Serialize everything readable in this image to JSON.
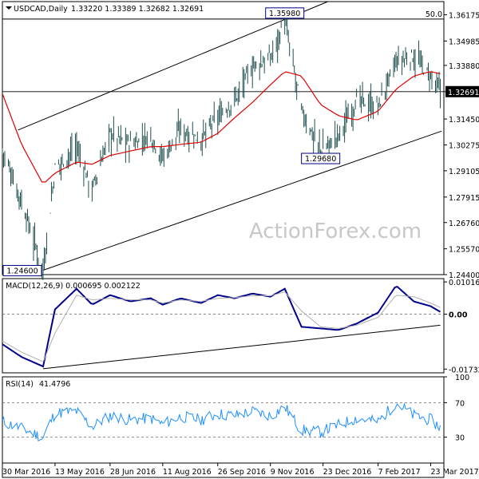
{
  "chart_data": [
    {
      "type": "ohlc",
      "panel": "price",
      "header": {
        "symbol": "USDCAD,Daily",
        "values": "1.33220 1.33389 1.32682 1.32691"
      },
      "y_ticks": [
        "1.36175",
        "1.34985",
        "1.33880",
        "1.32691",
        "1.31450",
        "1.30275",
        "1.29105",
        "1.27915",
        "1.26760",
        "1.25570",
        "1.24400"
      ],
      "ylim": [
        1.244,
        1.3677
      ],
      "last_price": 1.32691,
      "last_price_label": "1.32691",
      "fib_level": {
        "label": "50.0",
        "value": 1.3598
      },
      "horizontal_line": 1.3269,
      "annotations": [
        {
          "text": "1.35980",
          "value": 1.3598,
          "date": "2016-11-21"
        },
        {
          "text": "1.29680",
          "value": 1.2968,
          "date": "2016-12-21"
        },
        {
          "text": "1.24600",
          "value": 1.246,
          "date": "2016-05-03"
        }
      ],
      "trend_lines": [
        {
          "from": {
            "date": "2016-04-12",
            "value": 1.3095
          },
          "to": {
            "date": "2016-12-27",
            "value": 1.3677
          }
        },
        {
          "from": {
            "date": "2016-05-03",
            "value": 1.246
          },
          "to": {
            "date": "2017-04-01",
            "value": 1.309
          }
        }
      ],
      "moving_average_color": "#e00000",
      "bar_color": "#1f4f4f",
      "series_note": "approximate daily closes",
      "x": [
        "2016-03-30",
        "2016-04-15",
        "2016-05-03",
        "2016-05-13",
        "2016-05-31",
        "2016-06-13",
        "2016-06-28",
        "2016-07-15",
        "2016-08-01",
        "2016-08-11",
        "2016-08-26",
        "2016-09-12",
        "2016-09-26",
        "2016-10-10",
        "2016-10-25",
        "2016-11-09",
        "2016-11-21",
        "2016-12-05",
        "2016-12-21",
        "2017-01-05",
        "2017-01-20",
        "2017-02-07",
        "2017-02-22",
        "2017-03-09",
        "2017-03-23",
        "2017-03-31"
      ],
      "values": [
        1.3005,
        1.277,
        1.2462,
        1.292,
        1.302,
        1.282,
        1.308,
        1.303,
        1.307,
        1.297,
        1.31,
        1.305,
        1.315,
        1.323,
        1.338,
        1.342,
        1.359,
        1.318,
        1.3,
        1.307,
        1.323,
        1.32,
        1.34,
        1.343,
        1.333,
        1.3269
      ],
      "ma_values": [
        1.326,
        1.303,
        1.285,
        1.29,
        1.295,
        1.294,
        1.298,
        1.3,
        1.302,
        1.302,
        1.303,
        1.304,
        1.308,
        1.315,
        1.322,
        1.33,
        1.336,
        1.334,
        1.321,
        1.316,
        1.314,
        1.318,
        1.328,
        1.334,
        1.336,
        1.335
      ]
    },
    {
      "type": "line",
      "panel": "macd",
      "header": "MACD(12,26,9) 0.000695 0.002122",
      "y_ticks": [
        "0.010163",
        "0.00",
        "-0.017321"
      ],
      "ylim": [
        -0.0185,
        0.0112
      ],
      "series": [
        {
          "name": "MACD",
          "color": "#00008b",
          "values": [
            -0.0095,
            -0.0135,
            -0.0165,
            0.0015,
            0.008,
            0.003,
            0.006,
            0.004,
            0.005,
            0.003,
            0.005,
            0.0035,
            0.006,
            0.005,
            0.0065,
            0.0055,
            0.008,
            -0.004,
            -0.0045,
            -0.005,
            -0.003,
            0.0005,
            0.009,
            0.004,
            0.0025,
            0.0007
          ]
        },
        {
          "name": "Signal",
          "color": "#b0b0b0",
          "values": [
            -0.0085,
            -0.012,
            -0.015,
            -0.006,
            0.006,
            0.0045,
            0.005,
            0.0045,
            0.0045,
            0.0035,
            0.0045,
            0.004,
            0.005,
            0.0052,
            0.0058,
            0.0058,
            0.007,
            0.001,
            -0.004,
            -0.0045,
            -0.0035,
            -0.001,
            0.006,
            0.0055,
            0.0035,
            0.0021
          ]
        }
      ],
      "trend_line": {
        "from": {
          "date": "2016-05-03",
          "value": -0.0172
        },
        "to": {
          "date": "2017-03-31",
          "value": -0.0035
        }
      }
    },
    {
      "type": "line",
      "panel": "rsi",
      "header": {
        "name": "RSI(14)",
        "value": "41.4796"
      },
      "y_ticks": [
        "100",
        "70",
        "30"
      ],
      "ylim": [
        0,
        100
      ],
      "levels": [
        70,
        30
      ],
      "series": [
        {
          "name": "RSI",
          "color": "#1e90ff",
          "values": [
            48,
            40,
            30,
            58,
            60,
            42,
            55,
            50,
            52,
            45,
            54,
            50,
            57,
            55,
            60,
            55,
            65,
            38,
            36,
            44,
            52,
            48,
            70,
            55,
            50,
            41.4796
          ]
        }
      ]
    }
  ],
  "x_ticks": [
    {
      "label": "30 Mar 2016",
      "date": "2016-03-30"
    },
    {
      "label": "13 May 2016",
      "date": "2016-05-13"
    },
    {
      "label": "28 Jun 2016",
      "date": "2016-06-28"
    },
    {
      "label": "11 Aug 2016",
      "date": "2016-08-11"
    },
    {
      "label": "26 Sep 2016",
      "date": "2016-09-26"
    },
    {
      "label": "9 Nov 2016",
      "date": "2016-11-09"
    },
    {
      "label": "23 Dec 2016",
      "date": "2016-12-23"
    },
    {
      "label": "7 Feb 2017",
      "date": "2017-02-07"
    },
    {
      "label": "23 Mar 2017",
      "date": "2017-03-23"
    }
  ],
  "watermark": "ActionForex.com"
}
